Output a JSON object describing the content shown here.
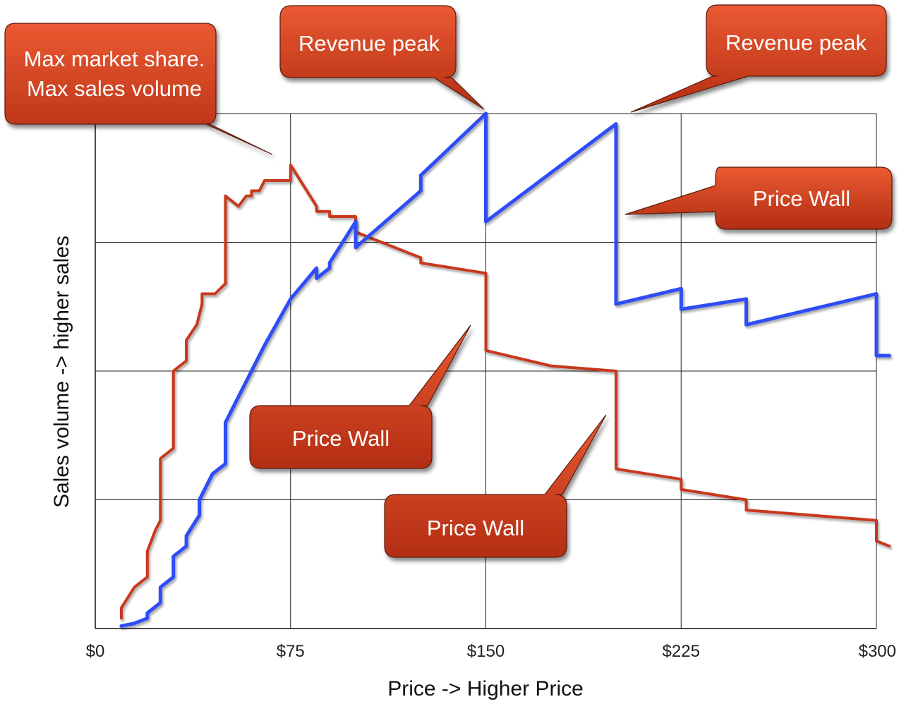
{
  "chart_data": {
    "type": "line",
    "xlabel": "Price -> Higher Price",
    "ylabel": "Sales volume -> higher sales",
    "xlim": [
      0,
      300
    ],
    "ylim": [
      0,
      100
    ],
    "x_ticks": [
      0,
      75,
      150,
      225,
      300
    ],
    "x_tick_labels": [
      "$0",
      "$75",
      "$150",
      "$225",
      "$300"
    ],
    "y_ticks": [
      0,
      25,
      50,
      75,
      100
    ],
    "y_tick_labels_shown": false,
    "grid": true,
    "legend": "none",
    "series": [
      {
        "color": "#c8381e",
        "points": [
          [
            10,
            2
          ],
          [
            10,
            4
          ],
          [
            15,
            8
          ],
          [
            20,
            10
          ],
          [
            20,
            15
          ],
          [
            23,
            19
          ],
          [
            25,
            21
          ],
          [
            25,
            33
          ],
          [
            30,
            35
          ],
          [
            30,
            50
          ],
          [
            35,
            52
          ],
          [
            35,
            56
          ],
          [
            39,
            59
          ],
          [
            41,
            63
          ],
          [
            41,
            65
          ],
          [
            46,
            65
          ],
          [
            50,
            67
          ],
          [
            50,
            84
          ],
          [
            55,
            82
          ],
          [
            58,
            84
          ],
          [
            60,
            84
          ],
          [
            60,
            85
          ],
          [
            63,
            85
          ],
          [
            65,
            87
          ],
          [
            75,
            87
          ],
          [
            75,
            90
          ],
          [
            80,
            86
          ],
          [
            85,
            82
          ],
          [
            85,
            81
          ],
          [
            90,
            81
          ],
          [
            90,
            80
          ],
          [
            100,
            80
          ],
          [
            100,
            77
          ],
          [
            105,
            76
          ],
          [
            125,
            72
          ],
          [
            125,
            71
          ],
          [
            150,
            69
          ],
          [
            150,
            54
          ],
          [
            175,
            51
          ],
          [
            200,
            50
          ],
          [
            200,
            31
          ],
          [
            225,
            29
          ],
          [
            225,
            27
          ],
          [
            250,
            25
          ],
          [
            250,
            23
          ],
          [
            300,
            21
          ],
          [
            300,
            17
          ],
          [
            305,
            16
          ]
        ]
      },
      {
        "color": "#2f4ef5",
        "points": [
          [
            10,
            0.5
          ],
          [
            15,
            1
          ],
          [
            20,
            2
          ],
          [
            20,
            3
          ],
          [
            25,
            5
          ],
          [
            25,
            8
          ],
          [
            30,
            10
          ],
          [
            30,
            14
          ],
          [
            35,
            16
          ],
          [
            35,
            18
          ],
          [
            40,
            22
          ],
          [
            40,
            25
          ],
          [
            45,
            30
          ],
          [
            50,
            32
          ],
          [
            50,
            40
          ],
          [
            55,
            45
          ],
          [
            60,
            50
          ],
          [
            65,
            55
          ],
          [
            75,
            64
          ],
          [
            85,
            70
          ],
          [
            85,
            68
          ],
          [
            90,
            70
          ],
          [
            90,
            71
          ],
          [
            100,
            79
          ],
          [
            100,
            74
          ],
          [
            125,
            85
          ],
          [
            125,
            88
          ],
          [
            150,
            100
          ],
          [
            150,
            79
          ],
          [
            200,
            98
          ],
          [
            200,
            63
          ],
          [
            225,
            66
          ],
          [
            225,
            62
          ],
          [
            250,
            64
          ],
          [
            250,
            59
          ],
          [
            300,
            65
          ],
          [
            300,
            53
          ],
          [
            305,
            53
          ]
        ]
      }
    ],
    "annotations": [
      {
        "lines": [
          "Max market share.",
          "Max sales volume"
        ]
      },
      {
        "lines": [
          "Revenue peak"
        ]
      },
      {
        "lines": [
          "Revenue peak"
        ]
      },
      {
        "lines": [
          "Price Wall"
        ]
      },
      {
        "lines": [
          "Price Wall"
        ]
      },
      {
        "lines": [
          "Price Wall"
        ]
      }
    ],
    "callout_color": "#d2492a"
  }
}
